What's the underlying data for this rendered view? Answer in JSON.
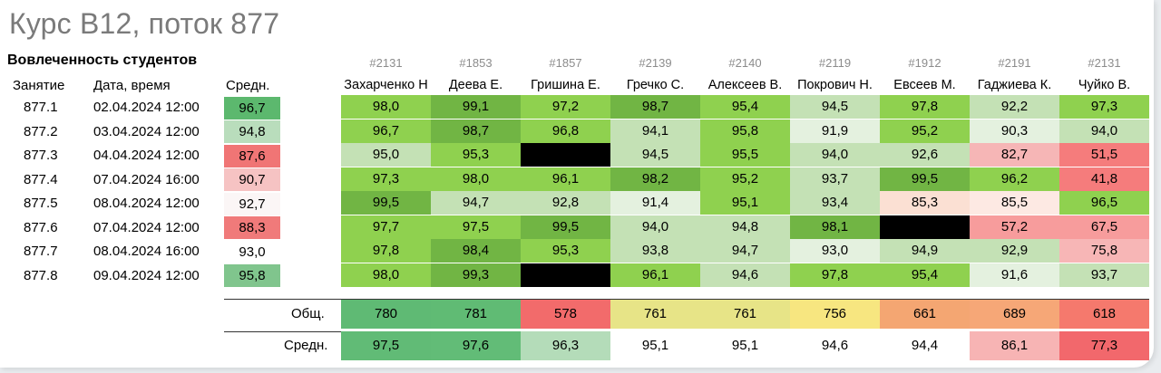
{
  "title": "Курс В12, поток 877",
  "subtitle": "Вовлеченность студентов",
  "headers": {
    "lesson": "Занятие",
    "datetime": "Дата, время",
    "avg": "Средн."
  },
  "students": [
    {
      "id": "#2131",
      "name": "Захарченко Н"
    },
    {
      "id": "#1853",
      "name": "Деева Е."
    },
    {
      "id": "#1857",
      "name": "Гришина Е."
    },
    {
      "id": "#2139",
      "name": "Гречко С."
    },
    {
      "id": "#2140",
      "name": "Алексеев В."
    },
    {
      "id": "#2119",
      "name": "Покрович Н."
    },
    {
      "id": "#1912",
      "name": "Евсеев М."
    },
    {
      "id": "#2191",
      "name": "Гаджиева К."
    },
    {
      "id": "#2131",
      "name": "Чуйко В."
    }
  ],
  "rows": [
    {
      "lesson": "877.1",
      "datetime": "02.04.2024 12:00",
      "avg": "96,7",
      "avg_color": "#5cb86e",
      "values": [
        "98,0",
        "99,1",
        "97,2",
        "98,7",
        "95,4",
        "94,5",
        "97,8",
        "92,2",
        "97,3"
      ],
      "colors": [
        "#8fd14f",
        "#71b544",
        "#8fd14f",
        "#71b544",
        "#8fd14f",
        "#c4e1b5",
        "#8fd14f",
        "#c4e1b5",
        "#8fd14f"
      ]
    },
    {
      "lesson": "877.2",
      "datetime": "03.04.2024 12:00",
      "avg": "94,8",
      "avg_color": "#b9ddbc",
      "values": [
        "96,7",
        "98,7",
        "96,8",
        "94,1",
        "95,8",
        "91,9",
        "95,2",
        "90,3",
        "94,0"
      ],
      "colors": [
        "#8fd14f",
        "#71b544",
        "#8fd14f",
        "#c4e1b5",
        "#8fd14f",
        "#e4f1df",
        "#8fd14f",
        "#e4f1df",
        "#c4e1b5"
      ]
    },
    {
      "lesson": "877.3",
      "datetime": "04.04.2024 12:00",
      "avg": "87,6",
      "avg_color": "#f07575",
      "values": [
        "95,0",
        "95,3",
        "",
        "94,5",
        "95,5",
        "94,0",
        "92,6",
        "82,7",
        "51,5"
      ],
      "colors": [
        "#c4e1b5",
        "#8fd14f",
        "#000000",
        "#c4e1b5",
        "#8fd14f",
        "#c4e1b5",
        "#c4e1b5",
        "#f6b6b6",
        "#f57c7c"
      ]
    },
    {
      "lesson": "877.4",
      "datetime": "07.04.2024 16:00",
      "avg": "90,7",
      "avg_color": "#f6c3c3",
      "values": [
        "97,3",
        "98,0",
        "96,1",
        "98,2",
        "95,2",
        "93,7",
        "99,5",
        "96,2",
        "41,8"
      ],
      "colors": [
        "#8fd14f",
        "#8fd14f",
        "#8fd14f",
        "#71b544",
        "#8fd14f",
        "#c4e1b5",
        "#71b544",
        "#8fd14f",
        "#f57c7c"
      ]
    },
    {
      "lesson": "877.5",
      "datetime": "08.04.2024 12:00",
      "avg": "92,7",
      "avg_color": "#fbf6f6",
      "values": [
        "99,5",
        "94,7",
        "92,8",
        "91,4",
        "95,1",
        "93,4",
        "85,3",
        "85,5",
        "96,5"
      ],
      "colors": [
        "#71b544",
        "#c4e1b5",
        "#c4e1b5",
        "#e4f1df",
        "#8fd14f",
        "#c4e1b5",
        "#fbe0d3",
        "#fde9e3",
        "#8fd14f"
      ]
    },
    {
      "lesson": "877.6",
      "datetime": "07.04.2024 12:00",
      "avg": "88,3",
      "avg_color": "#f07a7a",
      "values": [
        "97,7",
        "97,5",
        "99,5",
        "94,0",
        "94,8",
        "98,1",
        "",
        "57,2",
        "67,5"
      ],
      "colors": [
        "#8fd14f",
        "#8fd14f",
        "#71b544",
        "#c4e1b5",
        "#c4e1b5",
        "#71b544",
        "#000000",
        "#f79c9c",
        "#f79c9c"
      ]
    },
    {
      "lesson": "877.7",
      "datetime": "08.04.2024 16:00",
      "avg": "93,0",
      "avg_color": "#ffffff",
      "values": [
        "97,8",
        "98,4",
        "95,3",
        "93,8",
        "94,7",
        "93,0",
        "94,9",
        "92,9",
        "75,8"
      ],
      "colors": [
        "#8fd14f",
        "#71b544",
        "#8fd14f",
        "#c4e1b5",
        "#c4e1b5",
        "#e4f1df",
        "#c4e1b5",
        "#c4e1b5",
        "#f7b6b6"
      ]
    },
    {
      "lesson": "877.8",
      "datetime": "09.04.2024 12:00",
      "avg": "95,8",
      "avg_color": "#80c58d",
      "values": [
        "98,0",
        "99,3",
        "",
        "96,1",
        "94,6",
        "97,8",
        "95,4",
        "91,6",
        "93,7"
      ],
      "colors": [
        "#8fd14f",
        "#71b544",
        "#000000",
        "#8fd14f",
        "#c4e1b5",
        "#8fd14f",
        "#8fd14f",
        "#e4f1df",
        "#c4e1b5"
      ]
    }
  ],
  "totals": {
    "label": "Общ.",
    "values": [
      "780",
      "781",
      "578",
      "761",
      "761",
      "756",
      "661",
      "689",
      "618"
    ],
    "colors": [
      "#5fba74",
      "#60bb74",
      "#f26b6b",
      "#e7e487",
      "#e7e487",
      "#f7e680",
      "#f4a672",
      "#f6a777",
      "#f5796d"
    ]
  },
  "averages": {
    "label": "Средн.",
    "values": [
      "97,5",
      "97,6",
      "96,3",
      "95,1",
      "95,1",
      "94,6",
      "94,4",
      "86,1",
      "77,3"
    ],
    "colors": [
      "#61bb76",
      "#62bc77",
      "#b4dcb9",
      "#ffffff",
      "#ffffff",
      "#ffffff",
      "#ffffff",
      "#f7b4b4",
      "#f2686c"
    ]
  }
}
